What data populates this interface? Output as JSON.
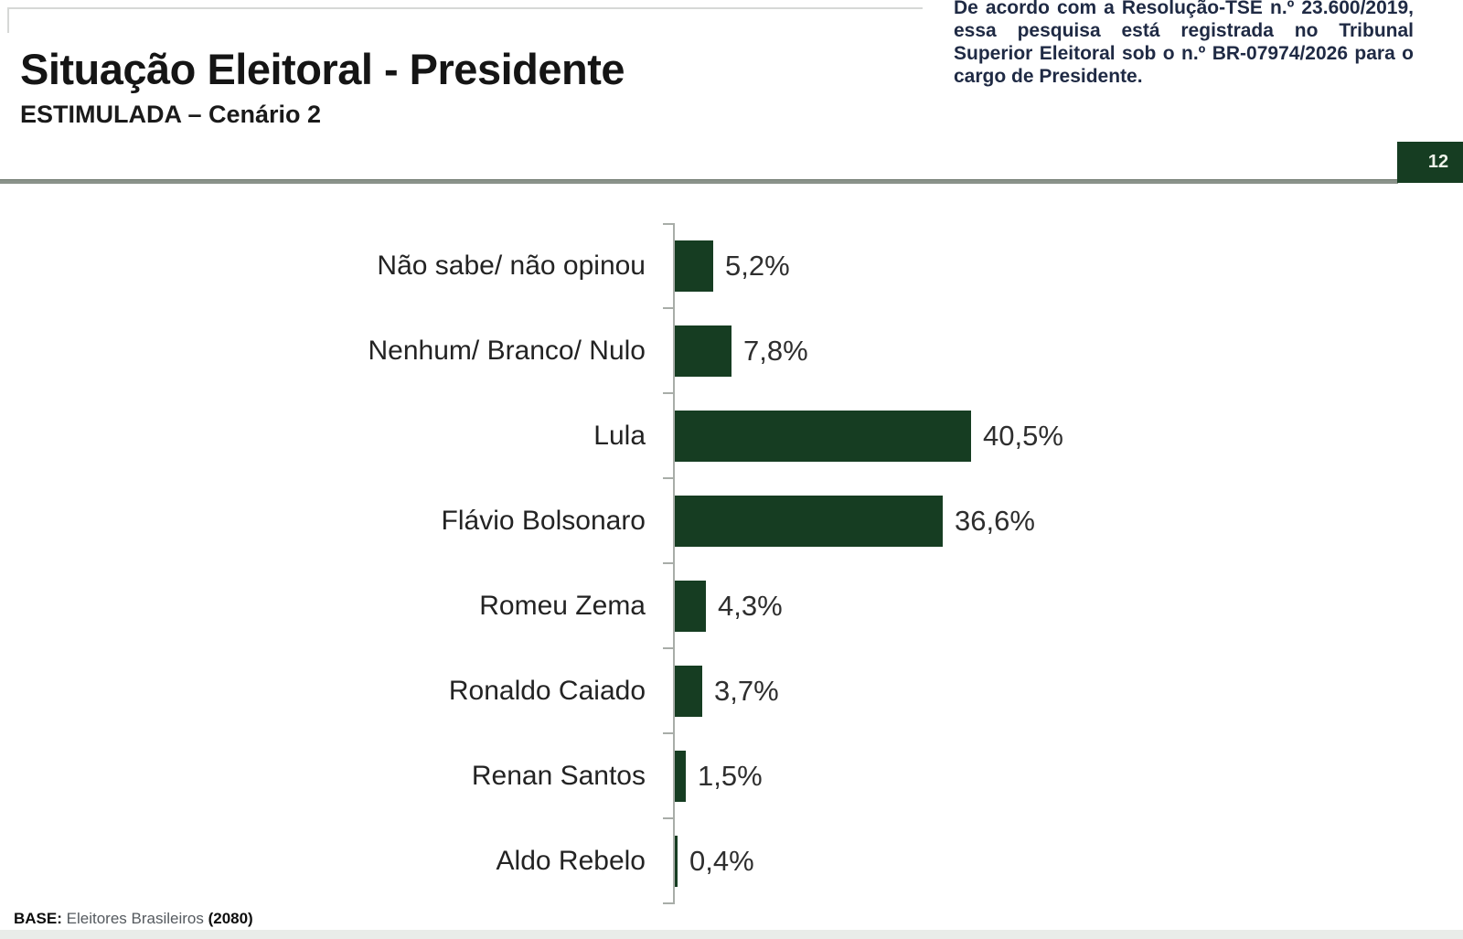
{
  "header": {
    "title": "Situação Eleitoral - Presidente",
    "subtitle": "ESTIMULADA – Cenário 2",
    "disclaimer": "De acordo com a Resolução-TSE n.º 23.600/2019, essa pesquisa está registrada no Tribunal Superior Eleitoral sob o n.º BR-07974/2026 para o cargo de Presidente.",
    "page_number": "12"
  },
  "footer": {
    "base_label": "BASE:",
    "base_text": " Eleitores Brasileiros ",
    "base_count": "(2080)"
  },
  "colors": {
    "bar_green": "#163d22",
    "badge_green": "#163d22",
    "rule_gray": "#8b938b",
    "axis_gray": "#a8ada8",
    "disclaimer_navy": "#1f2a44"
  },
  "chart_data": {
    "type": "bar",
    "orientation": "horizontal",
    "title": "Situação Eleitoral - Presidente",
    "subtitle": "ESTIMULADA – Cenário 2",
    "categories": [
      "Não sabe/ não opinou",
      "Nenhum/ Branco/ Nulo",
      "Lula",
      "Flávio Bolsonaro",
      "Romeu Zema",
      "Ronaldo Caiado",
      "Renan Santos",
      "Aldo Rebelo"
    ],
    "values": [
      5.2,
      7.8,
      40.5,
      36.6,
      4.3,
      3.7,
      1.5,
      0.4
    ],
    "value_labels": [
      "5,2%",
      "7,8%",
      "40,5%",
      "36,6%",
      "4,3%",
      "3,7%",
      "1,5%",
      "0,4%"
    ],
    "unit": "%",
    "xlim": [
      0,
      45
    ],
    "grid": false,
    "legend": false,
    "bar_color": "#163d22",
    "value_labels_position": "right-of-bar"
  }
}
